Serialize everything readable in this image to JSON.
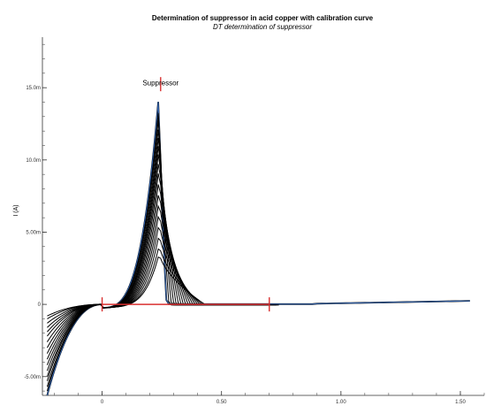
{
  "chart_data": {
    "type": "line",
    "title": "Determination of suppressor in acid copper with calibration curve",
    "subtitle": "DT determination of suppressor",
    "xlabel": "",
    "ylabel": "I (A)",
    "xlim": [
      -0.25,
      1.6
    ],
    "ylim": [
      -6.3e-06,
      1.85e-05
    ],
    "x_ticks": [
      {
        "value": 0,
        "label": "0"
      },
      {
        "value": 0.5,
        "label": "0.50"
      },
      {
        "value": 1.0,
        "label": "1.00"
      },
      {
        "value": 1.5,
        "label": "1.50"
      }
    ],
    "y_ticks": [
      {
        "value": -5e-06,
        "label": "-5.00m"
      },
      {
        "value": 0,
        "label": "0"
      },
      {
        "value": 5e-06,
        "label": "5.00m"
      },
      {
        "value": 1e-05,
        "label": "10.0m"
      },
      {
        "value": 1.5e-05,
        "label": "15.0m"
      }
    ],
    "grid": false,
    "annotation": {
      "text": "Suppressor",
      "x": 0.245,
      "y": 1.48e-05
    },
    "peak_x": 0.24,
    "colors": {
      "curves": "#000000",
      "highlight": "#2f5fa8",
      "markers": "#d93030",
      "axis": "#333333"
    },
    "markers": {
      "x": [
        0.0,
        0.7
      ],
      "peak_marker_x": 0.245
    },
    "baseline": {
      "x1": 0.0,
      "x2": 0.7,
      "y": 0,
      "color": "#d93030"
    },
    "series": [
      {
        "peak": 15.0,
        "min": -6.3,
        "recov": 0.02,
        "highlight": true
      },
      {
        "peak": 14.2,
        "min": -6.0,
        "recov": 0.03,
        "highlight": false
      },
      {
        "peak": 13.7,
        "min": -5.7,
        "recov": 0.04,
        "highlight": false
      },
      {
        "peak": 13.0,
        "min": -5.3,
        "recov": 0.05,
        "highlight": false
      },
      {
        "peak": 12.4,
        "min": -5.0,
        "recov": 0.06,
        "highlight": false
      },
      {
        "peak": 11.8,
        "min": -4.6,
        "recov": 0.07,
        "highlight": false
      },
      {
        "peak": 11.2,
        "min": -4.2,
        "recov": 0.08,
        "highlight": false
      },
      {
        "peak": 10.5,
        "min": -3.8,
        "recov": 0.09,
        "highlight": false
      },
      {
        "peak": 9.8,
        "min": -3.4,
        "recov": 0.1,
        "highlight": false
      },
      {
        "peak": 9.0,
        "min": -3.0,
        "recov": 0.11,
        "highlight": false
      },
      {
        "peak": 8.2,
        "min": -2.6,
        "recov": 0.12,
        "highlight": false
      },
      {
        "peak": 7.4,
        "min": -2.2,
        "recov": 0.13,
        "highlight": false
      },
      {
        "peak": 6.6,
        "min": -1.9,
        "recov": 0.14,
        "highlight": false
      },
      {
        "peak": 5.8,
        "min": -1.6,
        "recov": 0.15,
        "highlight": false
      },
      {
        "peak": 5.0,
        "min": -1.3,
        "recov": 0.16,
        "highlight": false
      },
      {
        "peak": 4.2,
        "min": -1.0,
        "recov": 0.17,
        "highlight": false
      },
      {
        "peak": 3.6,
        "min": -0.8,
        "recov": 0.18,
        "highlight": false
      }
    ]
  }
}
